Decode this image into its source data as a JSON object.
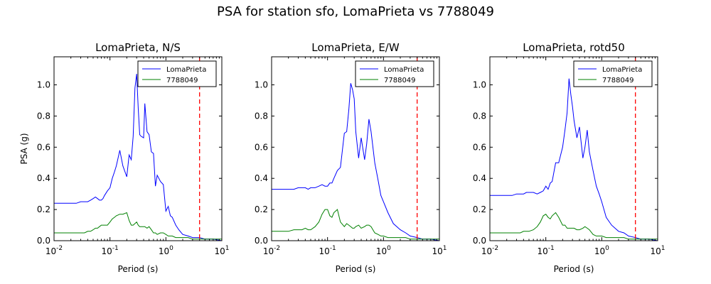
{
  "figure": {
    "title": "PSA for station sfo, LomaPrieta vs 7788049",
    "ylabel": "PSA (g)"
  },
  "chart_data": [
    {
      "type": "line",
      "title": "LomaPrieta, N/S",
      "xlabel": "Period (s)",
      "ylabel": "PSA (g)",
      "xscale": "log",
      "xlim": [
        0.01,
        10
      ],
      "ylim": [
        0,
        1.18
      ],
      "xticks": [
        "10^-2",
        "10^-1",
        "10^0",
        "10^1"
      ],
      "yticks": [
        "0.0",
        "0.2",
        "0.4",
        "0.6",
        "0.8",
        "1.0"
      ],
      "legend": "upper right",
      "vline": {
        "x": 4.0,
        "color": "#ff0000",
        "style": "dashed"
      },
      "series": [
        {
          "name": "LomaPrieta",
          "color": "#0000ff",
          "x": [
            0.01,
            0.015,
            0.02,
            0.025,
            0.03,
            0.035,
            0.04,
            0.045,
            0.05,
            0.055,
            0.06,
            0.065,
            0.07,
            0.075,
            0.08,
            0.09,
            0.1,
            0.11,
            0.12,
            0.13,
            0.15,
            0.17,
            0.2,
            0.22,
            0.24,
            0.26,
            0.28,
            0.3,
            0.32,
            0.34,
            0.36,
            0.4,
            0.42,
            0.46,
            0.5,
            0.55,
            0.6,
            0.65,
            0.7,
            0.8,
            0.9,
            1.0,
            1.1,
            1.2,
            1.3,
            1.5,
            1.7,
            2.0,
            2.5,
            3.0,
            4.0,
            5.0,
            7.0,
            10.0
          ],
          "y": [
            0.24,
            0.24,
            0.24,
            0.24,
            0.25,
            0.25,
            0.25,
            0.26,
            0.27,
            0.28,
            0.27,
            0.26,
            0.26,
            0.27,
            0.29,
            0.32,
            0.34,
            0.4,
            0.44,
            0.48,
            0.58,
            0.48,
            0.41,
            0.55,
            0.52,
            0.67,
            0.98,
            1.07,
            0.85,
            0.68,
            0.67,
            0.66,
            0.88,
            0.7,
            0.68,
            0.57,
            0.56,
            0.35,
            0.42,
            0.38,
            0.36,
            0.19,
            0.22,
            0.16,
            0.15,
            0.1,
            0.07,
            0.04,
            0.03,
            0.02,
            0.02,
            0.01,
            0.01,
            0.0
          ]
        },
        {
          "name": "7788049",
          "color": "#008000",
          "x": [
            0.01,
            0.015,
            0.02,
            0.025,
            0.03,
            0.035,
            0.04,
            0.045,
            0.05,
            0.055,
            0.06,
            0.065,
            0.07,
            0.075,
            0.08,
            0.09,
            0.1,
            0.11,
            0.12,
            0.13,
            0.15,
            0.17,
            0.2,
            0.22,
            0.24,
            0.26,
            0.28,
            0.3,
            0.32,
            0.34,
            0.36,
            0.4,
            0.42,
            0.46,
            0.5,
            0.55,
            0.6,
            0.65,
            0.7,
            0.8,
            0.9,
            1.0,
            1.1,
            1.2,
            1.3,
            1.5,
            1.7,
            2.0,
            2.5,
            3.0,
            4.0,
            5.0,
            7.0,
            10.0
          ],
          "y": [
            0.05,
            0.05,
            0.05,
            0.05,
            0.05,
            0.05,
            0.06,
            0.06,
            0.07,
            0.08,
            0.08,
            0.09,
            0.1,
            0.1,
            0.1,
            0.1,
            0.12,
            0.14,
            0.15,
            0.16,
            0.17,
            0.17,
            0.18,
            0.13,
            0.1,
            0.1,
            0.11,
            0.12,
            0.1,
            0.09,
            0.09,
            0.09,
            0.09,
            0.08,
            0.09,
            0.07,
            0.05,
            0.05,
            0.04,
            0.05,
            0.05,
            0.04,
            0.03,
            0.03,
            0.03,
            0.02,
            0.02,
            0.02,
            0.02,
            0.01,
            0.01,
            0.01,
            0.01,
            0.01
          ]
        }
      ]
    },
    {
      "type": "line",
      "title": "LomaPrieta, E/W",
      "xlabel": "Period (s)",
      "ylabel": "",
      "xscale": "log",
      "xlim": [
        0.01,
        10
      ],
      "ylim": [
        0,
        1.18
      ],
      "xticks": [
        "10^-2",
        "10^-1",
        "10^0",
        "10^1"
      ],
      "yticks": [
        "0.0",
        "0.2",
        "0.4",
        "0.6",
        "0.8",
        "1.0"
      ],
      "legend": "upper right",
      "vline": {
        "x": 4.0,
        "color": "#ff0000",
        "style": "dashed"
      },
      "series": [
        {
          "name": "LomaPrieta",
          "color": "#0000ff",
          "x": [
            0.01,
            0.015,
            0.02,
            0.025,
            0.03,
            0.035,
            0.04,
            0.045,
            0.05,
            0.06,
            0.07,
            0.08,
            0.09,
            0.1,
            0.11,
            0.12,
            0.13,
            0.15,
            0.17,
            0.2,
            0.22,
            0.24,
            0.26,
            0.28,
            0.3,
            0.32,
            0.36,
            0.4,
            0.46,
            0.5,
            0.55,
            0.6,
            0.7,
            0.8,
            0.9,
            1.0,
            1.2,
            1.5,
            2.0,
            2.5,
            3.0,
            4.0,
            5.0,
            7.0,
            10.0
          ],
          "y": [
            0.33,
            0.33,
            0.33,
            0.33,
            0.34,
            0.34,
            0.34,
            0.33,
            0.34,
            0.34,
            0.35,
            0.36,
            0.35,
            0.35,
            0.37,
            0.37,
            0.4,
            0.45,
            0.47,
            0.69,
            0.7,
            0.84,
            1.01,
            0.97,
            0.91,
            0.7,
            0.53,
            0.66,
            0.52,
            0.62,
            0.78,
            0.7,
            0.5,
            0.39,
            0.29,
            0.25,
            0.18,
            0.11,
            0.07,
            0.05,
            0.03,
            0.02,
            0.01,
            0.01,
            0.0
          ]
        },
        {
          "name": "7788049",
          "color": "#008000",
          "x": [
            0.01,
            0.015,
            0.02,
            0.025,
            0.03,
            0.035,
            0.04,
            0.045,
            0.05,
            0.06,
            0.07,
            0.08,
            0.09,
            0.1,
            0.11,
            0.12,
            0.13,
            0.15,
            0.17,
            0.2,
            0.22,
            0.24,
            0.26,
            0.28,
            0.3,
            0.32,
            0.36,
            0.4,
            0.46,
            0.5,
            0.55,
            0.6,
            0.7,
            0.8,
            0.9,
            1.0,
            1.2,
            1.5,
            2.0,
            2.5,
            3.0,
            4.0,
            5.0,
            7.0,
            10.0
          ],
          "y": [
            0.06,
            0.06,
            0.06,
            0.07,
            0.07,
            0.07,
            0.08,
            0.07,
            0.07,
            0.09,
            0.12,
            0.17,
            0.2,
            0.2,
            0.16,
            0.15,
            0.18,
            0.2,
            0.12,
            0.09,
            0.11,
            0.1,
            0.09,
            0.08,
            0.08,
            0.09,
            0.1,
            0.08,
            0.09,
            0.1,
            0.1,
            0.09,
            0.05,
            0.04,
            0.03,
            0.03,
            0.02,
            0.02,
            0.02,
            0.02,
            0.01,
            0.01,
            0.01,
            0.01,
            0.01
          ]
        }
      ]
    },
    {
      "type": "line",
      "title": "LomaPrieta, rotd50",
      "xlabel": "Period (s)",
      "ylabel": "",
      "xscale": "log",
      "xlim": [
        0.01,
        10
      ],
      "ylim": [
        0,
        1.18
      ],
      "xticks": [
        "10^-2",
        "10^-1",
        "10^0",
        "10^1"
      ],
      "yticks": [
        "0.0",
        "0.2",
        "0.4",
        "0.6",
        "0.8",
        "1.0"
      ],
      "legend": "upper right",
      "vline": {
        "x": 4.0,
        "color": "#ff0000",
        "style": "dashed"
      },
      "series": [
        {
          "name": "LomaPrieta",
          "color": "#0000ff",
          "x": [
            0.01,
            0.015,
            0.02,
            0.025,
            0.03,
            0.035,
            0.04,
            0.045,
            0.05,
            0.06,
            0.07,
            0.08,
            0.09,
            0.1,
            0.11,
            0.12,
            0.13,
            0.15,
            0.17,
            0.2,
            0.22,
            0.24,
            0.26,
            0.28,
            0.3,
            0.32,
            0.36,
            0.4,
            0.46,
            0.5,
            0.55,
            0.6,
            0.7,
            0.8,
            0.9,
            1.0,
            1.2,
            1.5,
            2.0,
            2.5,
            3.0,
            4.0,
            5.0,
            7.0,
            10.0
          ],
          "y": [
            0.29,
            0.29,
            0.29,
            0.29,
            0.3,
            0.3,
            0.3,
            0.31,
            0.31,
            0.31,
            0.3,
            0.31,
            0.32,
            0.35,
            0.33,
            0.37,
            0.38,
            0.5,
            0.5,
            0.6,
            0.71,
            0.82,
            1.04,
            0.94,
            0.86,
            0.77,
            0.66,
            0.73,
            0.53,
            0.6,
            0.71,
            0.57,
            0.45,
            0.35,
            0.3,
            0.25,
            0.15,
            0.1,
            0.06,
            0.05,
            0.03,
            0.02,
            0.01,
            0.01,
            0.0
          ]
        },
        {
          "name": "7788049",
          "color": "#008000",
          "x": [
            0.01,
            0.015,
            0.02,
            0.025,
            0.03,
            0.035,
            0.04,
            0.045,
            0.05,
            0.06,
            0.07,
            0.08,
            0.09,
            0.1,
            0.11,
            0.12,
            0.13,
            0.15,
            0.17,
            0.2,
            0.22,
            0.24,
            0.26,
            0.28,
            0.3,
            0.32,
            0.36,
            0.4,
            0.46,
            0.5,
            0.55,
            0.6,
            0.7,
            0.8,
            0.9,
            1.0,
            1.2,
            1.5,
            2.0,
            2.5,
            3.0,
            4.0,
            5.0,
            7.0,
            10.0
          ],
          "y": [
            0.05,
            0.05,
            0.05,
            0.05,
            0.05,
            0.05,
            0.06,
            0.06,
            0.06,
            0.07,
            0.09,
            0.12,
            0.16,
            0.17,
            0.15,
            0.14,
            0.16,
            0.18,
            0.15,
            0.1,
            0.1,
            0.08,
            0.08,
            0.08,
            0.08,
            0.08,
            0.07,
            0.07,
            0.08,
            0.09,
            0.08,
            0.07,
            0.04,
            0.03,
            0.03,
            0.03,
            0.02,
            0.02,
            0.02,
            0.02,
            0.01,
            0.01,
            0.01,
            0.01,
            0.01
          ]
        }
      ]
    }
  ]
}
